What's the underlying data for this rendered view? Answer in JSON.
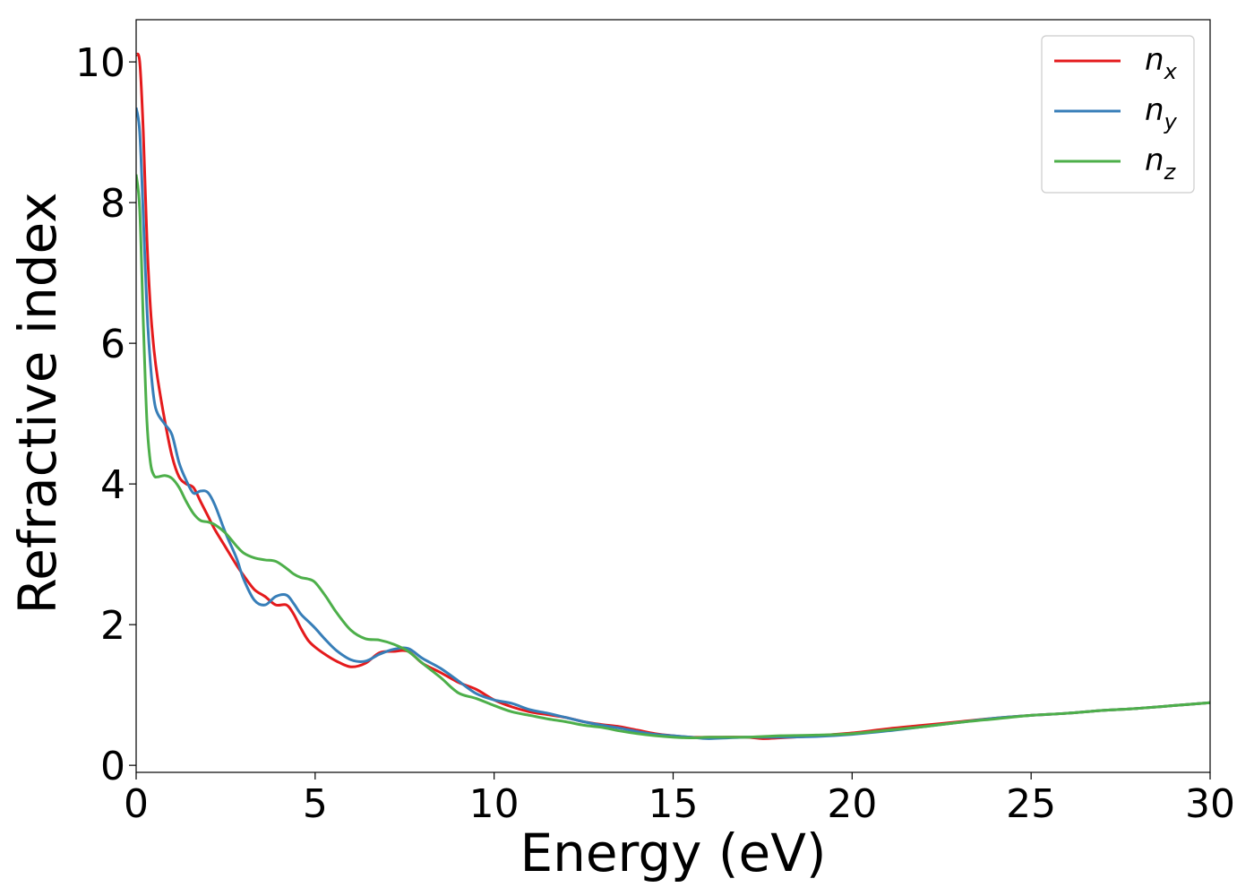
{
  "chart_data": {
    "type": "line",
    "title": "",
    "xlabel": "Energy (eV)",
    "ylabel": "Refractive index",
    "xlim": [
      0,
      30
    ],
    "ylim": [
      -0.1,
      10.6
    ],
    "xticks": [
      0,
      5,
      10,
      15,
      20,
      25,
      30
    ],
    "yticks": [
      0,
      2,
      4,
      6,
      8,
      10
    ],
    "xtick_labels": [
      "0",
      "5",
      "10",
      "15",
      "20",
      "25",
      "30"
    ],
    "ytick_labels": [
      "0",
      "2",
      "4",
      "6",
      "8",
      "10"
    ],
    "grid": false,
    "legend_position": "top-right",
    "series": [
      {
        "name": "n_x",
        "label_base": "n",
        "label_sub": "x",
        "color": "#e41a1c",
        "x": [
          0,
          0.1,
          0.2,
          0.3,
          0.4,
          0.5,
          0.6,
          0.8,
          1.0,
          1.2,
          1.4,
          1.6,
          1.8,
          2.0,
          2.2,
          2.5,
          2.8,
          3.0,
          3.3,
          3.6,
          3.9,
          4.2,
          4.4,
          4.6,
          4.8,
          5.0,
          5.3,
          5.6,
          6.0,
          6.4,
          6.8,
          7.2,
          7.6,
          8.0,
          8.5,
          9.0,
          9.5,
          10.0,
          10.5,
          11.0,
          11.5,
          12.0,
          12.5,
          13.0,
          13.5,
          14.0,
          14.5,
          15.0,
          15.5,
          16.0,
          17.0,
          17.5,
          18.0,
          19.0,
          20.0,
          21.0,
          22.0,
          23.0,
          24.0,
          25.0,
          26.0,
          27.0,
          28.0,
          29.0,
          30.0
        ],
        "y": [
          10.1,
          10.0,
          9.0,
          7.5,
          6.5,
          5.9,
          5.5,
          4.9,
          4.4,
          4.1,
          4.0,
          3.95,
          3.75,
          3.55,
          3.35,
          3.1,
          2.85,
          2.7,
          2.5,
          2.4,
          2.28,
          2.28,
          2.15,
          1.95,
          1.78,
          1.68,
          1.57,
          1.48,
          1.4,
          1.45,
          1.6,
          1.62,
          1.62,
          1.45,
          1.32,
          1.18,
          1.08,
          0.93,
          0.83,
          0.76,
          0.72,
          0.68,
          0.62,
          0.58,
          0.55,
          0.5,
          0.45,
          0.42,
          0.4,
          0.4,
          0.4,
          0.38,
          0.39,
          0.42,
          0.46,
          0.52,
          0.57,
          0.62,
          0.67,
          0.71,
          0.74,
          0.78,
          0.81,
          0.85,
          0.89
        ]
      },
      {
        "name": "n_y",
        "label_base": "n",
        "label_sub": "y",
        "color": "#377eb8",
        "x": [
          0,
          0.1,
          0.2,
          0.3,
          0.4,
          0.5,
          0.6,
          0.8,
          1.0,
          1.2,
          1.4,
          1.6,
          1.8,
          2.0,
          2.2,
          2.5,
          2.8,
          3.0,
          3.3,
          3.6,
          3.9,
          4.2,
          4.4,
          4.6,
          4.8,
          5.0,
          5.3,
          5.6,
          6.0,
          6.4,
          6.8,
          7.2,
          7.6,
          8.0,
          8.5,
          9.0,
          9.5,
          10.0,
          10.5,
          11.0,
          11.5,
          12.0,
          12.5,
          13.0,
          13.5,
          14.0,
          14.5,
          15.0,
          15.5,
          16.0,
          17.0,
          17.5,
          18.0,
          19.0,
          20.0,
          21.0,
          22.0,
          23.0,
          24.0,
          25.0,
          26.0,
          27.0,
          28.0,
          29.0,
          30.0
        ],
        "y": [
          9.35,
          9.0,
          7.8,
          6.5,
          5.7,
          5.2,
          5.0,
          4.85,
          4.7,
          4.3,
          4.05,
          3.87,
          3.9,
          3.88,
          3.7,
          3.3,
          2.95,
          2.65,
          2.35,
          2.28,
          2.4,
          2.42,
          2.3,
          2.15,
          2.05,
          1.95,
          1.78,
          1.63,
          1.5,
          1.48,
          1.58,
          1.65,
          1.66,
          1.52,
          1.38,
          1.2,
          1.02,
          0.93,
          0.88,
          0.79,
          0.74,
          0.68,
          0.62,
          0.57,
          0.53,
          0.48,
          0.44,
          0.42,
          0.4,
          0.38,
          0.4,
          0.4,
          0.4,
          0.41,
          0.44,
          0.49,
          0.55,
          0.61,
          0.67,
          0.71,
          0.74,
          0.78,
          0.81,
          0.85,
          0.89
        ]
      },
      {
        "name": "n_z",
        "label_base": "n",
        "label_sub": "z",
        "color": "#4daf4a",
        "x": [
          0,
          0.1,
          0.2,
          0.3,
          0.4,
          0.5,
          0.6,
          0.8,
          1.0,
          1.2,
          1.4,
          1.6,
          1.8,
          2.0,
          2.2,
          2.5,
          2.8,
          3.0,
          3.3,
          3.6,
          3.9,
          4.2,
          4.4,
          4.6,
          4.8,
          5.0,
          5.3,
          5.6,
          6.0,
          6.4,
          6.8,
          7.2,
          7.6,
          8.0,
          8.5,
          9.0,
          9.5,
          10.0,
          10.5,
          11.0,
          11.5,
          12.0,
          12.5,
          13.0,
          13.5,
          14.0,
          14.5,
          15.0,
          15.5,
          16.0,
          17.0,
          17.5,
          18.0,
          19.0,
          20.0,
          21.0,
          22.0,
          23.0,
          24.0,
          25.0,
          26.0,
          27.0,
          28.0,
          29.0,
          30.0
        ],
        "y": [
          8.4,
          7.9,
          6.3,
          4.9,
          4.3,
          4.12,
          4.1,
          4.12,
          4.08,
          3.95,
          3.75,
          3.58,
          3.48,
          3.46,
          3.42,
          3.3,
          3.12,
          3.02,
          2.95,
          2.92,
          2.9,
          2.8,
          2.72,
          2.67,
          2.65,
          2.6,
          2.4,
          2.17,
          1.92,
          1.8,
          1.78,
          1.72,
          1.62,
          1.45,
          1.25,
          1.03,
          0.95,
          0.85,
          0.76,
          0.71,
          0.66,
          0.62,
          0.57,
          0.54,
          0.49,
          0.45,
          0.42,
          0.4,
          0.39,
          0.4,
          0.4,
          0.41,
          0.42,
          0.43,
          0.45,
          0.5,
          0.55,
          0.61,
          0.66,
          0.71,
          0.74,
          0.78,
          0.81,
          0.85,
          0.89
        ]
      }
    ]
  }
}
